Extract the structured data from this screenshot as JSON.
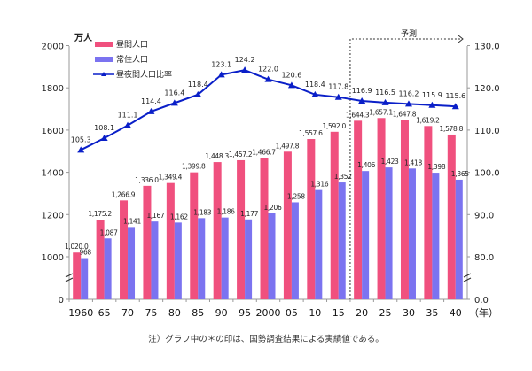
{
  "chart_data": {
    "type": "bar",
    "y_unit": "万人",
    "x_unit": "（年）",
    "categories": [
      "1960",
      "65",
      "70",
      "75",
      "80",
      "85",
      "90",
      "95",
      "2000",
      "05",
      "10",
      "15",
      "20",
      "25",
      "30",
      "35",
      "40"
    ],
    "series": [
      {
        "name": "昼間人口",
        "type": "bar",
        "axis": "left",
        "color": "#f0507e",
        "values": [
          1020.0,
          1175.2,
          1266.9,
          1336.0,
          1349.4,
          1399.8,
          1448.3,
          1457.2,
          1466.7,
          1497.8,
          1557.6,
          1592.0,
          1644.3,
          1657.1,
          1647.8,
          1619.2,
          1578.8
        ],
        "labels": [
          "1,020.0",
          "1,175.2",
          "1,266.9",
          "1,336.0",
          "1,349.4",
          "1,399.8",
          "1,448.3",
          "1,457.2",
          "1,466.7",
          "1,497.8",
          "1,557.6",
          "1,592.0",
          "1,644.3",
          "1,657.1",
          "1,647.8",
          "1,619.2",
          "1,578.8"
        ]
      },
      {
        "name": "常住人口",
        "type": "bar",
        "axis": "left",
        "color": "#7b73f0",
        "values": [
          968,
          1087,
          1141,
          1167,
          1162,
          1183,
          1186,
          1177,
          1206,
          1258,
          1316,
          1352,
          1406,
          1423,
          1418,
          1398,
          1365
        ],
        "labels": [
          "968",
          "1,087",
          "1,141",
          "1,167",
          "1,162",
          "1,183",
          "1,186",
          "1,177",
          "1,206",
          "1,258",
          "1,316",
          "1,352",
          "1,406",
          "1,423",
          "1,418",
          "1,398",
          "1,365"
        ]
      },
      {
        "name": "昼夜間人口比率",
        "type": "line",
        "axis": "right",
        "color": "#0a1fc8",
        "values": [
          105.3,
          108.1,
          111.1,
          114.4,
          116.4,
          118.4,
          123.1,
          124.2,
          122.0,
          120.6,
          118.4,
          117.8,
          116.9,
          116.5,
          116.2,
          115.9,
          115.6
        ],
        "labels": [
          "105.3",
          "108.1",
          "111.1",
          "114.4",
          "116.4",
          "118.4",
          "123.1",
          "124.2",
          "122.0",
          "120.6",
          "118.4",
          "117.8",
          "116.9",
          "116.5",
          "116.2",
          "115.9",
          "115.6"
        ]
      }
    ],
    "left_axis": {
      "ticks": [
        "0",
        "1000",
        "1200",
        "1400",
        "1600",
        "1800",
        "2000"
      ],
      "range": [
        0,
        2000
      ],
      "broken_between": [
        0,
        1000
      ]
    },
    "right_axis": {
      "ticks": [
        "0.0",
        "80.0",
        "90.0",
        "100.0",
        "110.0",
        "120.0",
        "130.0"
      ],
      "range": [
        0,
        130
      ],
      "broken_between": [
        0,
        80
      ]
    },
    "forecast": {
      "label": "予測",
      "from_category": "20"
    },
    "legend_placement": "top-left",
    "grid": false
  },
  "note": "注）グラフ中の＊の印は、国勢調査結果による実績値である。"
}
